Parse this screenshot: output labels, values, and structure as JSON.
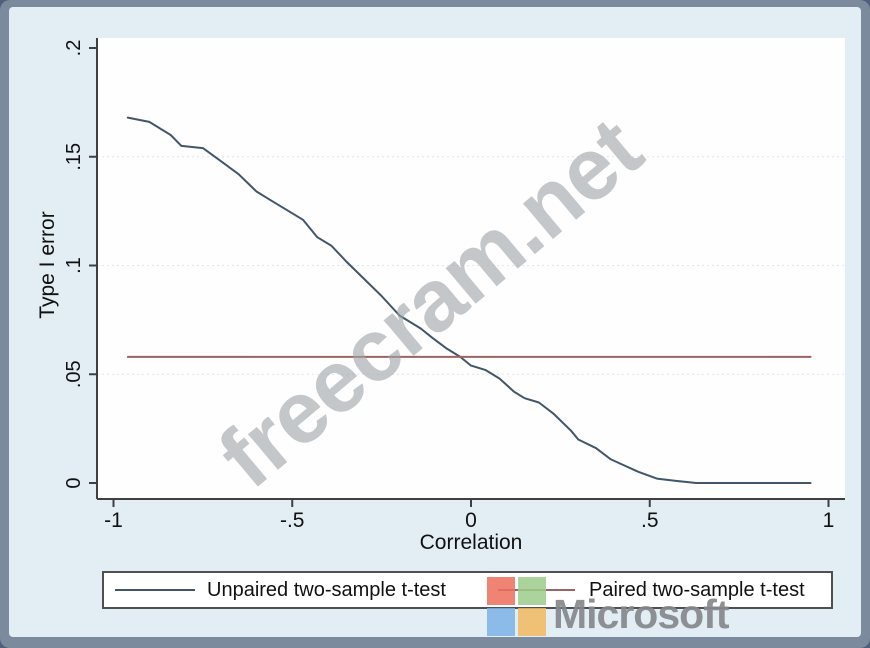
{
  "watermark": {
    "text": "freecram.net"
  },
  "brand": {
    "name": "Microsoft",
    "logo_colors": {
      "red": "#ec6f5d",
      "green": "#9ccd8b",
      "blue": "#7db2e6",
      "yellow": "#f1b95f",
      "text": "#85898c"
    }
  },
  "theme": {
    "frame": "#7b8a9d",
    "figure_bg": "#e3edf4",
    "plot_bg": "#fefefe",
    "axis_color": "#3f3f3f",
    "gridline_color": "#cfd8de",
    "legend_border": "#4f4f4f"
  },
  "chart_data": {
    "type": "line",
    "title": "",
    "xlabel": "Correlation",
    "ylabel": "Type I error",
    "xlim": [
      -1.05,
      1.05
    ],
    "ylim": [
      0,
      0.2
    ],
    "grid": "faint horizontal dashes",
    "legend_position": "bottom",
    "x_ticks": {
      "values": [
        -1,
        -0.5,
        0,
        0.5,
        1
      ],
      "labels": [
        "-1",
        "-.5",
        "0",
        ".5",
        "1"
      ]
    },
    "y_ticks": {
      "values": [
        0,
        0.05,
        0.1,
        0.15,
        0.2
      ],
      "labels": [
        "0",
        ".05",
        ".1",
        ".15",
        ".2"
      ]
    },
    "y_gridlines": [
      0.05,
      0.1,
      0.15
    ],
    "series": [
      {
        "name": "Unpaired two-sample t-test",
        "color": "#425669",
        "points": [
          [
            -0.96,
            0.168
          ],
          [
            -0.9,
            0.166
          ],
          [
            -0.84,
            0.16
          ],
          [
            -0.81,
            0.155
          ],
          [
            -0.75,
            0.154
          ],
          [
            -0.7,
            0.148
          ],
          [
            -0.65,
            0.142
          ],
          [
            -0.6,
            0.134
          ],
          [
            -0.56,
            0.13
          ],
          [
            -0.5,
            0.124
          ],
          [
            -0.47,
            0.121
          ],
          [
            -0.43,
            0.113
          ],
          [
            -0.39,
            0.109
          ],
          [
            -0.35,
            0.102
          ],
          [
            -0.3,
            0.094
          ],
          [
            -0.25,
            0.086
          ],
          [
            -0.2,
            0.077
          ],
          [
            -0.14,
            0.071
          ],
          [
            -0.11,
            0.067
          ],
          [
            -0.07,
            0.062
          ],
          [
            -0.03,
            0.058
          ],
          [
            0.0,
            0.054
          ],
          [
            0.04,
            0.052
          ],
          [
            0.08,
            0.048
          ],
          [
            0.12,
            0.042
          ],
          [
            0.15,
            0.039
          ],
          [
            0.19,
            0.037
          ],
          [
            0.23,
            0.032
          ],
          [
            0.28,
            0.024
          ],
          [
            0.3,
            0.02
          ],
          [
            0.35,
            0.016
          ],
          [
            0.39,
            0.011
          ],
          [
            0.43,
            0.008
          ],
          [
            0.47,
            0.005
          ],
          [
            0.52,
            0.002
          ],
          [
            0.57,
            0.001
          ],
          [
            0.63,
            0.0
          ],
          [
            0.72,
            0.0
          ],
          [
            0.95,
            0.0
          ]
        ]
      },
      {
        "name": "Paired two-sample t-test",
        "color": "#9c6460",
        "points": [
          [
            -0.96,
            0.058
          ],
          [
            0.95,
            0.058
          ]
        ]
      }
    ]
  }
}
